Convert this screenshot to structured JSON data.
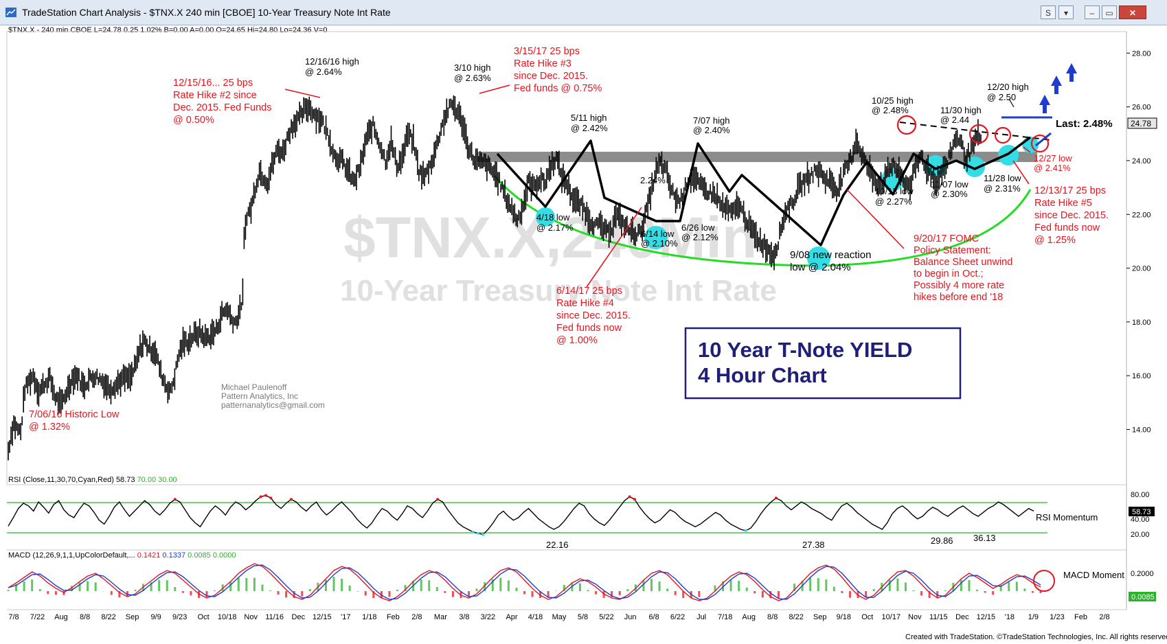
{
  "window": {
    "title": "TradeStation Chart Analysis - $TNX.X 240 min [CBOE] 10-Year Treasury Note Int Rate",
    "controls": [
      "S",
      "▾",
      "▭",
      "✕"
    ]
  },
  "quote_line": "$TNX.X - 240 min  CBOE  L=24.78  0.25  1.02%  B=0.00  A=0.00  O=24.65  Hi=24.80  Lo=24.36  V=0",
  "footer": "Created with TradeStation. ©TradeStation Technologies, Inc. All rights reserved.",
  "colors": {
    "price": "#000000",
    "annotation_red": "#e8141e",
    "support_band": "#8c8c8c",
    "arc": "#22dd22",
    "cyan": "#33dde6",
    "rsi_band": "#2bb32b",
    "navy": "#1f1f7a",
    "blue": "#1f3dcc"
  },
  "watermark": {
    "symbol": "$TNX.X,240Min",
    "name": "10-Year Treasury Note Int Rate"
  },
  "infobox": {
    "line1": "10 Year T-Note YIELD",
    "line2": "4 Hour Chart"
  },
  "credit": [
    "Michael Paulenoff",
    "Pattern Analytics, Inc",
    "patternanalytics@gmail.com"
  ],
  "last_label": "Last: 2.48%",
  "last_value": "24.78",
  "chart_data": {
    "type": "line",
    "title": "",
    "ylim": [
      12.2,
      28.8
    ],
    "y_ticks": [
      14,
      16,
      18,
      20,
      22,
      24,
      26,
      28
    ],
    "y_tick_labels": [
      "14.00",
      "16.00",
      "18.00",
      "20.00",
      "22.00",
      "24.00",
      "26.00",
      "28.00"
    ],
    "x_ticks": [
      "7/8",
      "7/22",
      "Aug",
      "8/8",
      "8/22",
      "Sep",
      "9/9",
      "9/23",
      "Oct",
      "10/18",
      "Nov",
      "11/16",
      "Dec",
      "12/15",
      "'17",
      "1/18",
      "Feb",
      "2/8",
      "Mar",
      "3/8",
      "3/22",
      "Apr",
      "4/18",
      "May",
      "5/8",
      "5/22",
      "Jun",
      "6/8",
      "6/22",
      "Jul",
      "7/18",
      "Aug",
      "8/8",
      "8/22",
      "Sep",
      "9/18",
      "Oct",
      "10/17",
      "Nov",
      "11/15",
      "Dec",
      "12/15",
      "'18",
      "1/9",
      "1/23",
      "Feb",
      "2/8"
    ],
    "series": [
      {
        "values": [
          [
            0,
            13.2
          ],
          [
            4,
            13.8
          ],
          [
            8,
            14.2
          ],
          [
            14,
            14.0
          ],
          [
            18,
            13.9
          ],
          [
            24,
            15.5
          ],
          [
            30,
            15.8
          ],
          [
            36,
            16.0
          ],
          [
            44,
            15.4
          ],
          [
            52,
            15.7
          ],
          [
            60,
            15.9
          ],
          [
            68,
            15.2
          ],
          [
            76,
            14.9
          ],
          [
            84,
            15.4
          ],
          [
            92,
            15.9
          ],
          [
            100,
            16.0
          ],
          [
            108,
            15.6
          ],
          [
            118,
            15.9
          ],
          [
            126,
            16.0
          ],
          [
            136,
            15.8
          ],
          [
            146,
            15.5
          ],
          [
            156,
            15.7
          ],
          [
            166,
            15.9
          ],
          [
            176,
            15.9
          ],
          [
            184,
            16.4
          ],
          [
            190,
            17.0
          ],
          [
            196,
            17.3
          ],
          [
            204,
            17.0
          ],
          [
            212,
            16.9
          ],
          [
            220,
            16.1
          ],
          [
            228,
            15.6
          ],
          [
            234,
            15.4
          ],
          [
            240,
            16.0
          ],
          [
            246,
            16.8
          ],
          [
            252,
            17.2
          ],
          [
            260,
            17.3
          ],
          [
            268,
            17.5
          ],
          [
            276,
            17.6
          ],
          [
            284,
            17.4
          ],
          [
            292,
            17.5
          ],
          [
            300,
            17.7
          ],
          [
            308,
            18.3
          ],
          [
            316,
            18.5
          ],
          [
            322,
            18.1
          ],
          [
            328,
            18.0
          ],
          [
            334,
            18.4
          ],
          [
            338,
            19.0
          ],
          [
            340,
            21.0
          ],
          [
            344,
            22.0
          ],
          [
            350,
            22.2
          ],
          [
            356,
            23.0
          ],
          [
            362,
            23.6
          ],
          [
            368,
            23.4
          ],
          [
            374,
            23.2
          ],
          [
            380,
            23.8
          ],
          [
            388,
            24.4
          ],
          [
            396,
            24.3
          ],
          [
            404,
            25.0
          ],
          [
            412,
            25.4
          ],
          [
            420,
            25.6
          ],
          [
            428,
            25.9
          ],
          [
            434,
            26.0
          ],
          [
            442,
            25.7
          ],
          [
            452,
            25.5
          ],
          [
            462,
            24.9
          ],
          [
            470,
            24.2
          ],
          [
            480,
            24.0
          ],
          [
            490,
            23.6
          ],
          [
            498,
            23.2
          ],
          [
            508,
            23.8
          ],
          [
            516,
            24.8
          ],
          [
            526,
            25.3
          ],
          [
            536,
            24.6
          ],
          [
            544,
            24.0
          ],
          [
            552,
            24.7
          ],
          [
            560,
            23.8
          ],
          [
            568,
            24.1
          ],
          [
            576,
            25.0
          ],
          [
            584,
            24.7
          ],
          [
            592,
            23.6
          ],
          [
            600,
            23.4
          ],
          [
            608,
            23.8
          ],
          [
            616,
            24.4
          ],
          [
            624,
            25.2
          ],
          [
            632,
            25.8
          ],
          [
            640,
            26.1
          ],
          [
            648,
            25.8
          ],
          [
            656,
            25.3
          ],
          [
            662,
            24.6
          ],
          [
            670,
            24.1
          ],
          [
            678,
            23.9
          ],
          [
            686,
            23.9
          ],
          [
            694,
            23.7
          ],
          [
            702,
            23.5
          ],
          [
            710,
            23.1
          ],
          [
            718,
            22.6
          ],
          [
            726,
            22.2
          ],
          [
            734,
            21.8
          ],
          [
            742,
            22.3
          ],
          [
            750,
            23.2
          ],
          [
            758,
            23.0
          ],
          [
            766,
            23.3
          ],
          [
            774,
            23.2
          ],
          [
            782,
            23.8
          ],
          [
            790,
            24.1
          ],
          [
            798,
            23.4
          ],
          [
            806,
            23.1
          ],
          [
            814,
            22.6
          ],
          [
            822,
            22.4
          ],
          [
            830,
            22.2
          ],
          [
            838,
            21.8
          ],
          [
            846,
            21.6
          ],
          [
            854,
            21.6
          ],
          [
            862,
            21.3
          ],
          [
            870,
            21.5
          ],
          [
            876,
            22.0
          ],
          [
            882,
            21.8
          ],
          [
            888,
            21.6
          ],
          [
            896,
            21.4
          ],
          [
            904,
            21.3
          ],
          [
            910,
            21.3
          ],
          [
            916,
            21.7
          ],
          [
            922,
            22.3
          ],
          [
            928,
            23.0
          ],
          [
            934,
            23.6
          ],
          [
            940,
            23.9
          ],
          [
            948,
            23.6
          ],
          [
            956,
            22.9
          ],
          [
            962,
            22.6
          ],
          [
            968,
            22.5
          ],
          [
            974,
            22.8
          ],
          [
            980,
            23.3
          ],
          [
            988,
            23.4
          ],
          [
            996,
            23.1
          ],
          [
            1004,
            22.9
          ],
          [
            1012,
            22.8
          ],
          [
            1020,
            22.7
          ],
          [
            1028,
            22.3
          ],
          [
            1036,
            22.2
          ],
          [
            1044,
            22.0
          ],
          [
            1052,
            22.4
          ],
          [
            1060,
            22.0
          ],
          [
            1068,
            21.6
          ],
          [
            1076,
            21.2
          ],
          [
            1084,
            21.0
          ],
          [
            1092,
            20.8
          ],
          [
            1098,
            20.6
          ],
          [
            1104,
            20.5
          ],
          [
            1110,
            21.0
          ],
          [
            1116,
            21.7
          ],
          [
            1122,
            22.2
          ],
          [
            1130,
            22.4
          ],
          [
            1138,
            22.9
          ],
          [
            1146,
            23.2
          ],
          [
            1154,
            23.4
          ],
          [
            1162,
            23.6
          ],
          [
            1170,
            23.6
          ],
          [
            1178,
            23.3
          ],
          [
            1186,
            23.2
          ],
          [
            1194,
            22.9
          ],
          [
            1200,
            23.2
          ],
          [
            1206,
            23.6
          ],
          [
            1212,
            23.9
          ],
          [
            1218,
            24.3
          ],
          [
            1222,
            24.8
          ],
          [
            1228,
            24.4
          ],
          [
            1236,
            23.9
          ],
          [
            1244,
            23.5
          ],
          [
            1252,
            23.2
          ],
          [
            1260,
            23.1
          ],
          [
            1268,
            23.6
          ],
          [
            1276,
            23.9
          ],
          [
            1284,
            23.5
          ],
          [
            1292,
            23.2
          ],
          [
            1300,
            23.1
          ],
          [
            1308,
            23.7
          ],
          [
            1316,
            24.2
          ],
          [
            1322,
            23.8
          ],
          [
            1330,
            23.5
          ],
          [
            1338,
            23.2
          ],
          [
            1346,
            23.6
          ],
          [
            1354,
            23.9
          ],
          [
            1362,
            24.6
          ],
          [
            1368,
            24.9
          ],
          [
            1374,
            24.6
          ],
          [
            1380,
            24.1
          ],
          [
            1386,
            24.3
          ],
          [
            1392,
            24.6
          ],
          [
            1398,
            24.9
          ],
          [
            1404,
            24.8
          ]
        ]
      }
    ],
    "annotations": [
      "12/16/16 high\n@ 2.64%",
      "12/15/16... 25 bps\nRate Hike #2 since\nDec. 2015. Fed Funds\n@ 0.50%",
      "3/10 high\n@ 2.63%",
      "3/15/17 25 bps\nRate Hike #3\nsince Dec. 2015.\nFed funds @ 0.75%",
      "5/11 high\n@ 2.42%",
      "7/07 high\n@ 2.40%",
      "2.24%",
      "4/18 low\n@ 2.17%",
      "6/14 low\n@ 2.10%",
      "6/26 low\n@ 2.12%",
      "6/14/17 25 bps\nRate Hike #4\nsince Dec. 2015.\nFed funds now\n@ 1.00%",
      "9/08 new reaction\nlow @ 2.04%",
      "9/20/17 FOMC\nPolicy Statement:\nBalance Sheet unwind\nto begin in Oct.;\nPossibly 4 more rate\nhikes before end '18",
      "10/25 high\n@ 2.48%",
      "11/30 high\n@ 2.44",
      "12/20 high\n@ 2.50",
      "10/13 low\n@ 2.27%",
      "11/07 low\n@ 2.30%",
      "11/28 low\n@ 2.31%",
      "12/27 low\n@ 2.41%",
      "12/13/17 25 bps\nRate Hike #5\nsince Dec. 2015.\nFed funds now\n@ 1.25%",
      "7/06/16 Historic Low\n@ 1.32%"
    ]
  },
  "rsi": {
    "header": "RSI (Close,11,30,70,Cyan,Red)",
    "value": "58.73",
    "upper": "70.00",
    "lower": "30.00",
    "label": "RSI Momentum",
    "ylim": [
      10,
      90
    ],
    "y_tick_labels": [
      "80.00",
      "60.00",
      "40.00",
      "20.00"
    ],
    "low_labels": [
      "22.16",
      "27.38",
      "29.86",
      "36.13"
    ],
    "values": [
      35,
      48,
      62,
      70,
      66,
      58,
      72,
      64,
      55,
      68,
      74,
      60,
      52,
      48,
      60,
      70,
      66,
      56,
      44,
      38,
      50,
      64,
      72,
      60,
      50,
      58,
      66,
      74,
      68,
      58,
      52,
      60,
      70,
      76,
      72,
      60,
      48,
      40,
      34,
      46,
      58,
      66,
      60,
      52,
      64,
      72,
      68,
      60,
      66,
      74,
      80,
      82,
      78,
      68,
      62,
      70,
      76,
      72,
      64,
      58,
      66,
      72,
      60,
      52,
      58,
      66,
      72,
      64,
      56,
      46,
      38,
      32,
      40,
      52,
      62,
      58,
      50,
      44,
      54,
      66,
      62,
      54,
      48,
      58,
      70,
      76,
      72,
      60,
      50,
      40,
      34,
      30,
      26,
      24,
      22,
      30,
      40,
      52,
      58,
      50,
      44,
      48,
      56,
      62,
      54,
      46,
      40,
      34,
      30,
      34,
      42,
      52,
      62,
      70,
      66,
      54,
      46,
      40,
      36,
      44,
      54,
      64,
      74,
      80,
      76,
      64,
      54,
      46,
      40,
      44,
      52,
      60,
      56,
      48,
      42,
      38,
      34,
      38,
      44,
      50,
      56,
      52,
      44,
      38,
      34,
      30,
      28,
      32,
      42,
      54,
      64,
      72,
      78,
      74,
      66,
      60,
      66,
      72,
      68,
      62,
      58,
      54,
      48,
      44,
      56,
      66,
      70,
      64,
      56,
      50,
      44,
      38,
      34,
      30,
      40,
      54,
      62,
      66,
      60,
      52,
      46,
      50,
      58,
      64,
      60,
      54,
      50,
      56,
      62,
      66,
      60,
      54,
      50,
      56,
      62,
      66,
      72,
      68,
      62,
      56,
      50,
      56,
      62,
      58
    ]
  },
  "macd": {
    "header": "MACD (12,26,9,1,1,UpColorDefault,...",
    "v1": "0.1421",
    "v2": "0.1337",
    "v3": "0.0085",
    "v4": "0.0000",
    "label": "MACD Moment",
    "axis_label": "0.2000",
    "last_value": "0.0085",
    "values": [
      0.05,
      0.12,
      0.2,
      0.28,
      0.22,
      0.12,
      0.04,
      -0.02,
      0.05,
      0.14,
      0.22,
      0.26,
      0.18,
      0.08,
      -0.02,
      -0.08,
      -0.04,
      0.06,
      0.15,
      0.24,
      0.3,
      0.26,
      0.16,
      0.06,
      -0.04,
      -0.1,
      -0.06,
      0.04,
      0.14,
      0.26,
      0.34,
      0.4,
      0.36,
      0.26,
      0.14,
      0.02,
      -0.08,
      -0.12,
      -0.06,
      0.06,
      0.18,
      0.3,
      0.36,
      0.32,
      0.22,
      0.1,
      -0.02,
      -0.1,
      -0.14,
      -0.08,
      0.02,
      0.14,
      0.24,
      0.3,
      0.26,
      0.16,
      0.04,
      -0.06,
      -0.1,
      -0.04,
      0.08,
      0.2,
      0.3,
      0.34,
      0.28,
      0.16,
      0.04,
      -0.06,
      -0.12,
      -0.08,
      0.02,
      0.12,
      0.18,
      0.14,
      0.06,
      -0.04,
      -0.1,
      -0.12,
      -0.06,
      0.04,
      0.16,
      0.26,
      0.3,
      0.24,
      0.12,
      0.0,
      -0.1,
      -0.14,
      -0.1,
      0.0,
      0.12,
      0.22,
      0.28,
      0.24,
      0.14,
      0.02,
      -0.08,
      -0.14,
      -0.1,
      0.02,
      0.14,
      0.26,
      0.34,
      0.38,
      0.32,
      0.2,
      0.06,
      -0.06,
      -0.12,
      -0.06,
      0.06,
      0.18,
      0.28,
      0.3,
      0.22,
      0.1,
      -0.02,
      -0.1,
      -0.06,
      0.06,
      0.18,
      0.26,
      0.2,
      0.12,
      0.04,
      0.1,
      0.18,
      0.24,
      0.2,
      0.12,
      0.06
    ]
  }
}
